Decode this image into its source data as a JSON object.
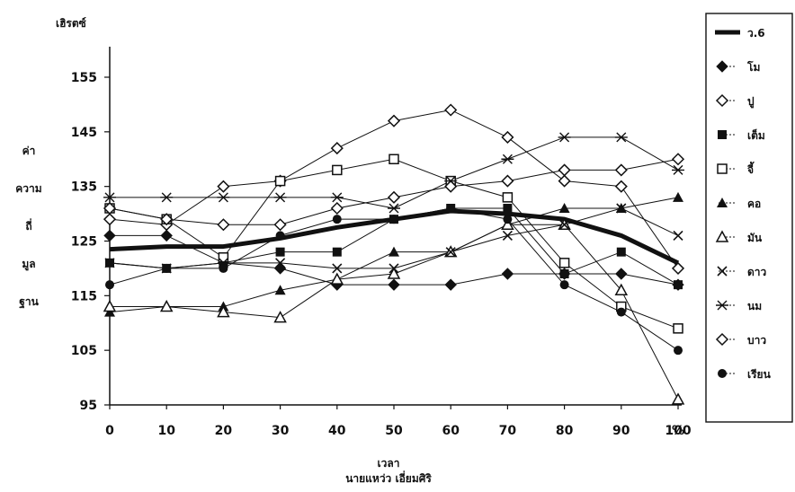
{
  "chart_data": {
    "type": "line",
    "ylabel_top": "เฮิรตซ์",
    "ylabel_side": [
      "ค่า",
      "ความ",
      "ถี่",
      "มูล",
      "ฐาน"
    ],
    "xlabel": "เวลา",
    "xunit": "%",
    "credit": "นายแหว่ว เอี่ยมศิริ",
    "x": [
      0,
      10,
      20,
      30,
      40,
      50,
      60,
      70,
      80,
      90,
      100
    ],
    "xtick_labels": [
      "0",
      "10",
      "20",
      "30",
      "40",
      "50",
      "60",
      "70",
      "80",
      "90",
      "100"
    ],
    "yticks": [
      95,
      105,
      115,
      125,
      135,
      145,
      155
    ],
    "ylim": [
      95,
      160
    ],
    "legend_position": "right",
    "series": [
      {
        "name": "ว.6",
        "marker": "none",
        "bold": true,
        "values": [
          123.5,
          124,
          124,
          125.5,
          127.5,
          129,
          130.5,
          130,
          129,
          126,
          121
        ]
      },
      {
        "name": "โม",
        "marker": "diamond-filled",
        "values": [
          126,
          126,
          121,
          120,
          117,
          117,
          117,
          119,
          119,
          119,
          117
        ]
      },
      {
        "name": "ปู",
        "marker": "diamond-open",
        "values": [
          129,
          128,
          135,
          136,
          142,
          147,
          149,
          144,
          136,
          135,
          120
        ]
      },
      {
        "name": "เต็ม",
        "marker": "square-filled",
        "values": [
          121,
          120,
          121,
          123,
          123,
          129,
          131,
          131,
          119,
          123,
          117
        ]
      },
      {
        "name": "จี้",
        "marker": "square-open",
        "values": [
          131,
          129,
          122,
          136,
          138,
          140,
          136,
          133,
          121,
          113,
          109
        ]
      },
      {
        "name": "คอ",
        "marker": "triangle-filled",
        "values": [
          112,
          113,
          113,
          116,
          118,
          123,
          123,
          128,
          131,
          131,
          133
        ]
      },
      {
        "name": "มัน",
        "marker": "triangle-open",
        "values": [
          113,
          113,
          112,
          111,
          118,
          119,
          123,
          128,
          128,
          116,
          96
        ]
      },
      {
        "name": "ดาว",
        "marker": "x",
        "values": [
          121,
          120,
          121,
          121,
          120,
          120,
          123,
          126,
          128,
          131,
          126
        ]
      },
      {
        "name": "นม",
        "marker": "x-bar",
        "values": [
          133,
          133,
          133,
          133,
          133,
          131,
          136,
          140,
          144,
          144,
          138
        ]
      },
      {
        "name": "บาว",
        "marker": "diamond-open",
        "values": [
          131,
          129,
          128,
          128,
          131,
          133,
          135,
          136,
          138,
          138,
          140
        ]
      },
      {
        "name": "เรียน",
        "marker": "circle-filled",
        "values": [
          117,
          120,
          120,
          126,
          129,
          129,
          131,
          129,
          117,
          112,
          105
        ]
      }
    ]
  }
}
